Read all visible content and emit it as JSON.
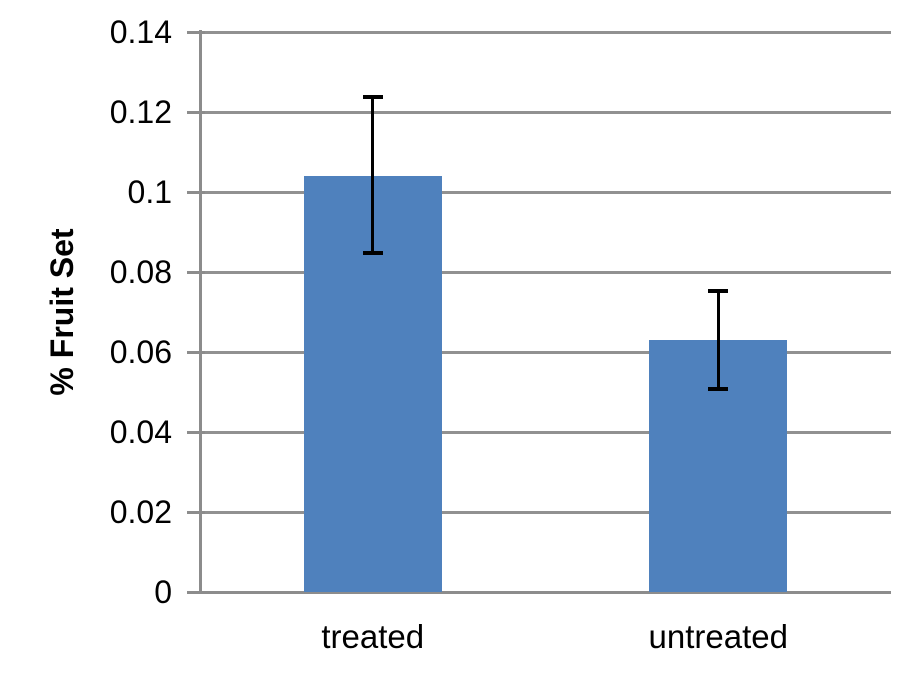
{
  "chart_data": {
    "type": "bar",
    "title": "",
    "ylabel": "% Fruit Set",
    "xlabel": "",
    "categories": [
      "treated",
      "untreated"
    ],
    "values": [
      0.104,
      0.063
    ],
    "error_bars": {
      "upper": [
        0.124,
        0.0755
      ],
      "lower": [
        0.0845,
        0.0505
      ]
    },
    "ylim": [
      0,
      0.14
    ],
    "ytick_step": 0.02,
    "yticks": [
      {
        "value": 0,
        "label": "0"
      },
      {
        "value": 0.02,
        "label": "0.02"
      },
      {
        "value": 0.04,
        "label": "0.04"
      },
      {
        "value": 0.06,
        "label": "0.06"
      },
      {
        "value": 0.08,
        "label": "0.08"
      },
      {
        "value": 0.1,
        "label": "0.1"
      },
      {
        "value": 0.12,
        "label": "0.12"
      },
      {
        "value": 0.14,
        "label": "0.14"
      }
    ],
    "grid": true,
    "legend": "none",
    "colors": {
      "bar": "#4F81BD",
      "gridline": "#919191",
      "axis": "#8C8C8C",
      "error_bar": "#000000",
      "text": "#000000"
    }
  }
}
